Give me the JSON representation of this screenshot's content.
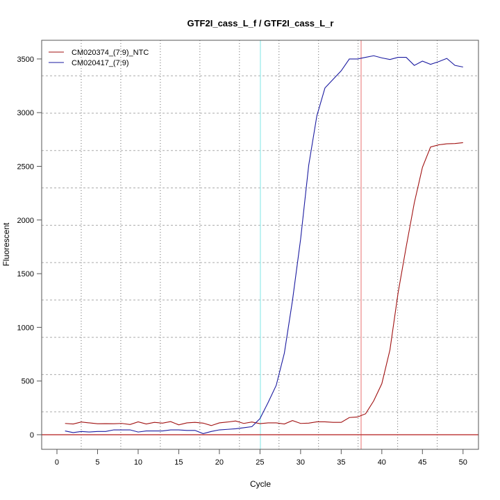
{
  "chart_data": {
    "type": "line",
    "title": "GTF2I_cass_L_f / GTF2I_cass_L_r",
    "xlabel": "Cycle",
    "ylabel": "Fluorescent",
    "xlim": [
      -1.88,
      51.9
    ],
    "ylim": [
      -136,
      3674
    ],
    "xticks": [
      0,
      5,
      10,
      15,
      20,
      25,
      30,
      35,
      40,
      45,
      50
    ],
    "yticks": [
      0,
      500,
      1000,
      1500,
      2000,
      2500,
      3000,
      3500
    ],
    "grid": true,
    "grid_x": [
      2.99,
      7.86,
      12.73,
      17.6,
      22.47,
      27.34,
      32.21,
      37.08,
      41.95,
      46.82
    ],
    "grid_y": [
      213,
      560,
      907,
      1255,
      1603,
      1951,
      2299,
      2647,
      2995,
      3343
    ],
    "threshold": 0,
    "vline_cyan": 25.05,
    "vline_red": 37.45,
    "legend_position": "top-left",
    "x": [
      1,
      2,
      3,
      4,
      5,
      6,
      7,
      8,
      9,
      10,
      11,
      12,
      13,
      14,
      15,
      16,
      17,
      18,
      19,
      20,
      21,
      22,
      23,
      24,
      25,
      26,
      27,
      28,
      29,
      30,
      31,
      32,
      33,
      34,
      35,
      36,
      37,
      38,
      39,
      40,
      41,
      42,
      43,
      44,
      45,
      46,
      47,
      48,
      49,
      50
    ],
    "series": [
      {
        "name": "CM020374_(7:9)_NTC",
        "color": "#a01010",
        "values": [
          105,
          100,
          118,
          110,
          102,
          103,
          102,
          105,
          95,
          120,
          100,
          115,
          108,
          122,
          92,
          110,
          115,
          108,
          85,
          110,
          118,
          128,
          105,
          118,
          103,
          110,
          110,
          100,
          132,
          105,
          108,
          120,
          120,
          115,
          115,
          160,
          165,
          195,
          315,
          475,
          790,
          1320,
          1750,
          2160,
          2490,
          2680,
          2700,
          2710,
          2712,
          2720
        ]
      },
      {
        "name": "CM020417_(7:9)",
        "color": "#1a1aa0",
        "values": [
          35,
          20,
          30,
          25,
          30,
          30,
          45,
          45,
          45,
          25,
          35,
          35,
          35,
          45,
          45,
          40,
          40,
          10,
          30,
          45,
          50,
          55,
          65,
          75,
          150,
          300,
          460,
          760,
          1250,
          1820,
          2510,
          2970,
          3230,
          3310,
          3390,
          3500,
          3500,
          3515,
          3530,
          3510,
          3495,
          3515,
          3515,
          3440,
          3480,
          3450,
          3475,
          3505,
          3440,
          3425
        ]
      }
    ]
  }
}
